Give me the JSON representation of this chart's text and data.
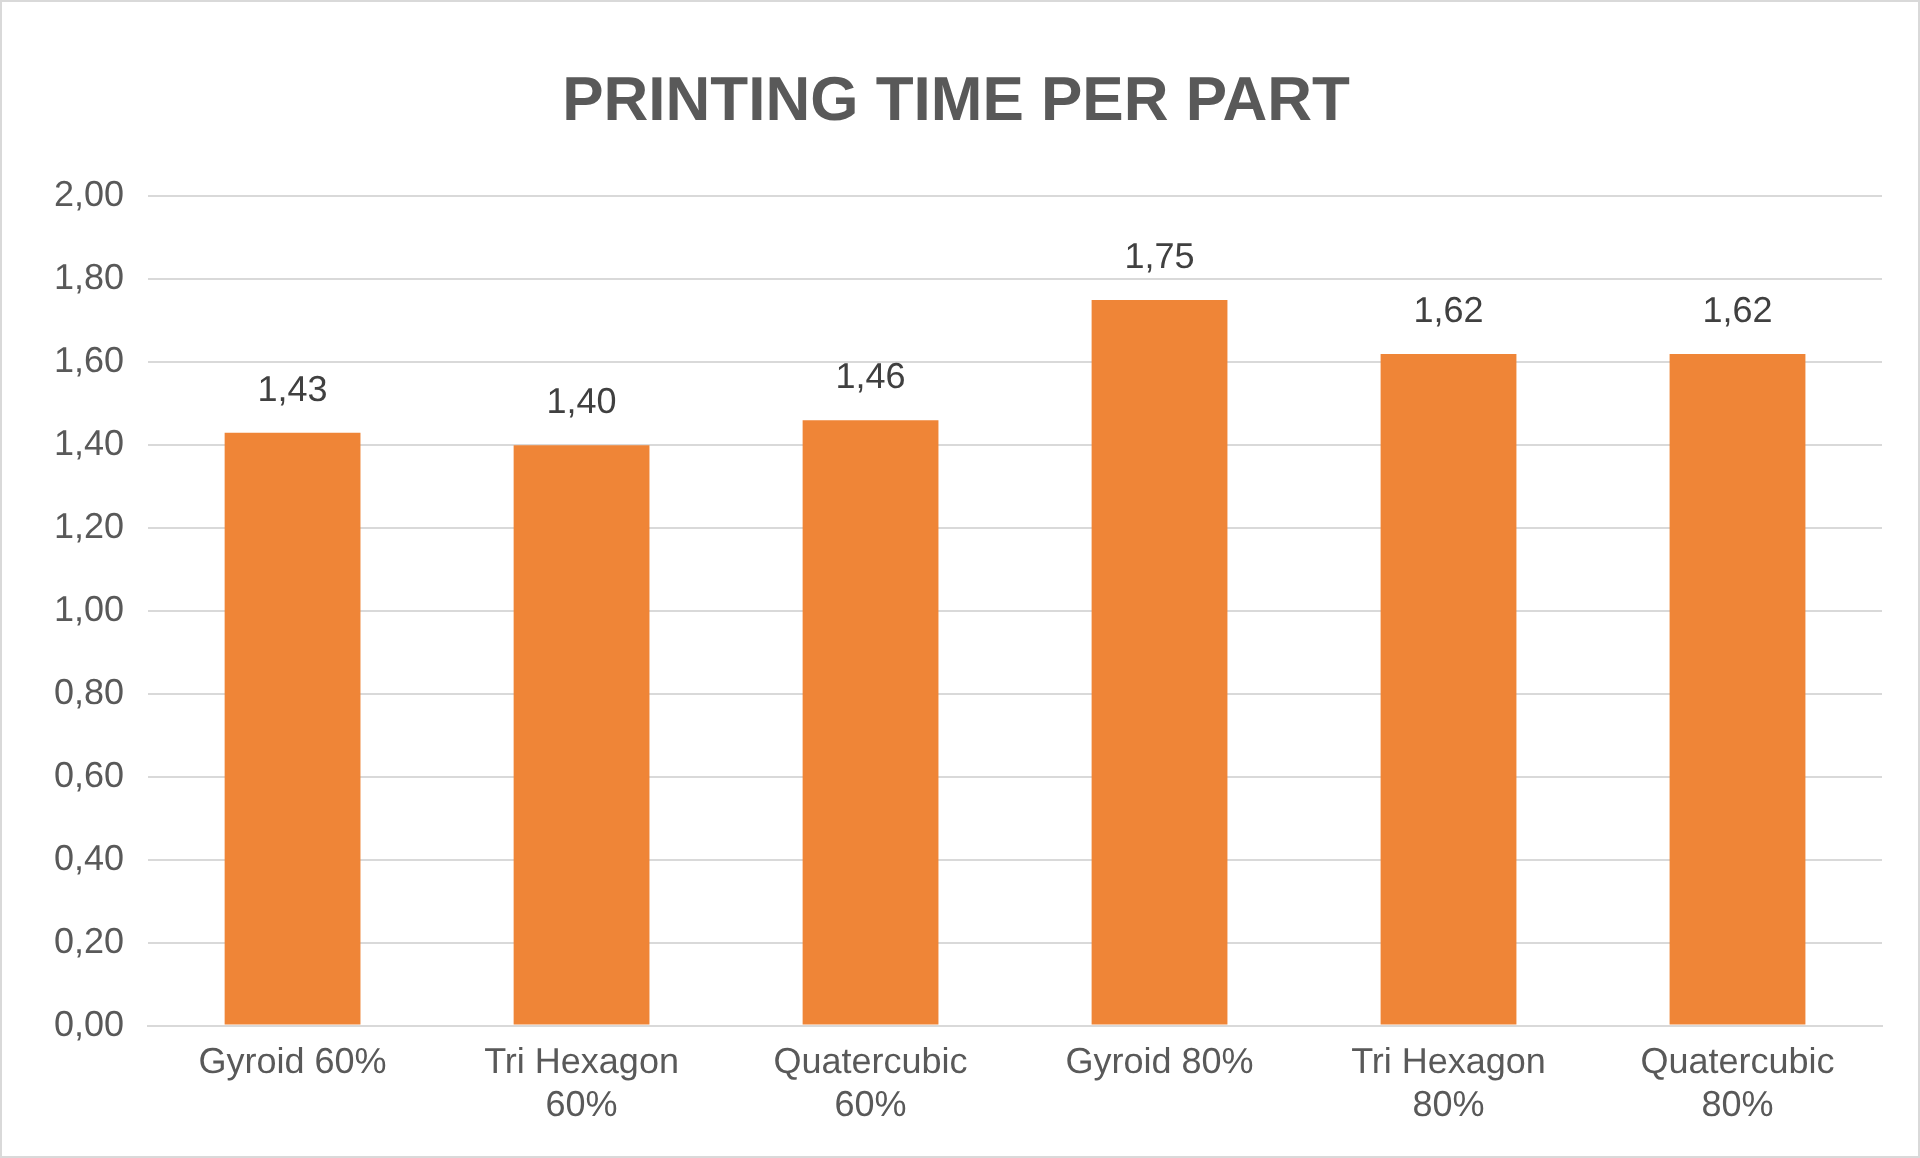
{
  "chart_data": {
    "type": "bar",
    "title": "PRINTING TIME PER PART",
    "categories": [
      "Gyroid 60%",
      "Tri Hexagon 60%",
      "Quatercubic 60%",
      "Gyroid 80%",
      "Tri Hexagon 80%",
      "Quatercubic 80%"
    ],
    "values": [
      1.43,
      1.4,
      1.46,
      1.75,
      1.62,
      1.62
    ],
    "value_labels": [
      "1,43",
      "1,40",
      "1,46",
      "1,75",
      "1,62",
      "1,62"
    ],
    "color": "#ef8537",
    "ylim": [
      0,
      2
    ],
    "yticks": [
      {
        "value": 0,
        "label": "0,00"
      },
      {
        "value": 0.2,
        "label": "0,20"
      },
      {
        "value": 0.4,
        "label": "0,40"
      },
      {
        "value": 0.6,
        "label": "0,60"
      },
      {
        "value": 0.8,
        "label": "0,80"
      },
      {
        "value": 1,
        "label": "1,00"
      },
      {
        "value": 1.2,
        "label": "1,20"
      },
      {
        "value": 1.4,
        "label": "1,40"
      },
      {
        "value": 1.6,
        "label": "1,60"
      },
      {
        "value": 1.8,
        "label": "1,80"
      },
      {
        "value": 2,
        "label": "2,00"
      }
    ],
    "grid": "y"
  }
}
